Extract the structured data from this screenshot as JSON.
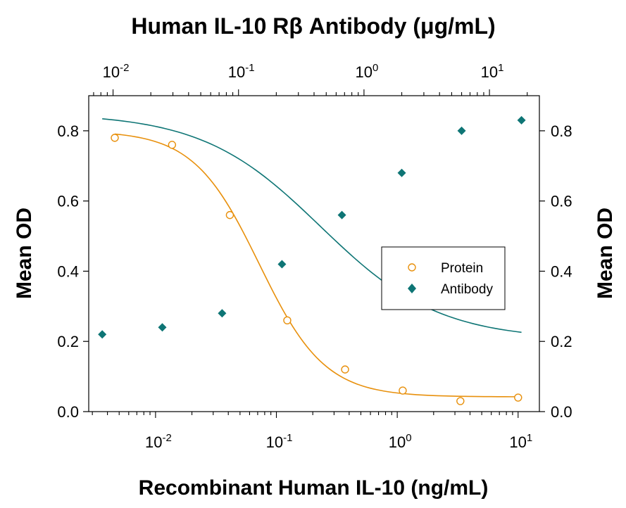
{
  "chart_data": {
    "type": "scatter",
    "title": "Human IL-10 Rβ Antibody (μg/mL)",
    "xlabel": "Recombinant Human IL-10  (ng/mL)",
    "ylabel_left": "Mean OD",
    "ylabel_right": "Mean OD",
    "x_scale": "log",
    "xlim": [
      0.0028,
      15
    ],
    "x2lim": [
      0.0064,
      25
    ],
    "ylim": [
      0,
      0.9
    ],
    "y_ticks": [
      0.0,
      0.2,
      0.4,
      0.6,
      0.8
    ],
    "y_tick_labels": [
      "0.0",
      "0.2",
      "0.4",
      "0.6",
      "0.8"
    ],
    "x_ticks": [
      {
        "value": 0.01,
        "base": "10",
        "exp": "-2"
      },
      {
        "value": 0.1,
        "base": "10",
        "exp": "-1"
      },
      {
        "value": 1,
        "base": "10",
        "exp": "0"
      },
      {
        "value": 10,
        "base": "10",
        "exp": "1"
      }
    ],
    "x2_ticks": [
      {
        "value": 0.01,
        "base": "10",
        "exp": "-2"
      },
      {
        "value": 0.1,
        "base": "10",
        "exp": "-1"
      },
      {
        "value": 1,
        "base": "10",
        "exp": "0"
      },
      {
        "value": 10,
        "base": "10",
        "exp": "1"
      }
    ],
    "legend_position": "right-middle",
    "series": [
      {
        "name": "Protein",
        "axis": "bottom",
        "marker": "open-circle",
        "color": "#E8900C",
        "x": [
          0.0046,
          0.0137,
          0.0412,
          0.123,
          0.37,
          1.11,
          3.33,
          10
        ],
        "y": [
          0.78,
          0.76,
          0.56,
          0.26,
          0.12,
          0.06,
          0.03,
          0.04
        ]
      },
      {
        "name": "Antibody",
        "axis": "top",
        "marker": "filled-diamond",
        "color": "#0E7575",
        "x": [
          0.0082,
          0.0247,
          0.074,
          0.222,
          0.667,
          2.0,
          6.0,
          18.0
        ],
        "y": [
          0.22,
          0.24,
          0.28,
          0.42,
          0.56,
          0.68,
          0.8,
          0.83
        ]
      }
    ]
  }
}
